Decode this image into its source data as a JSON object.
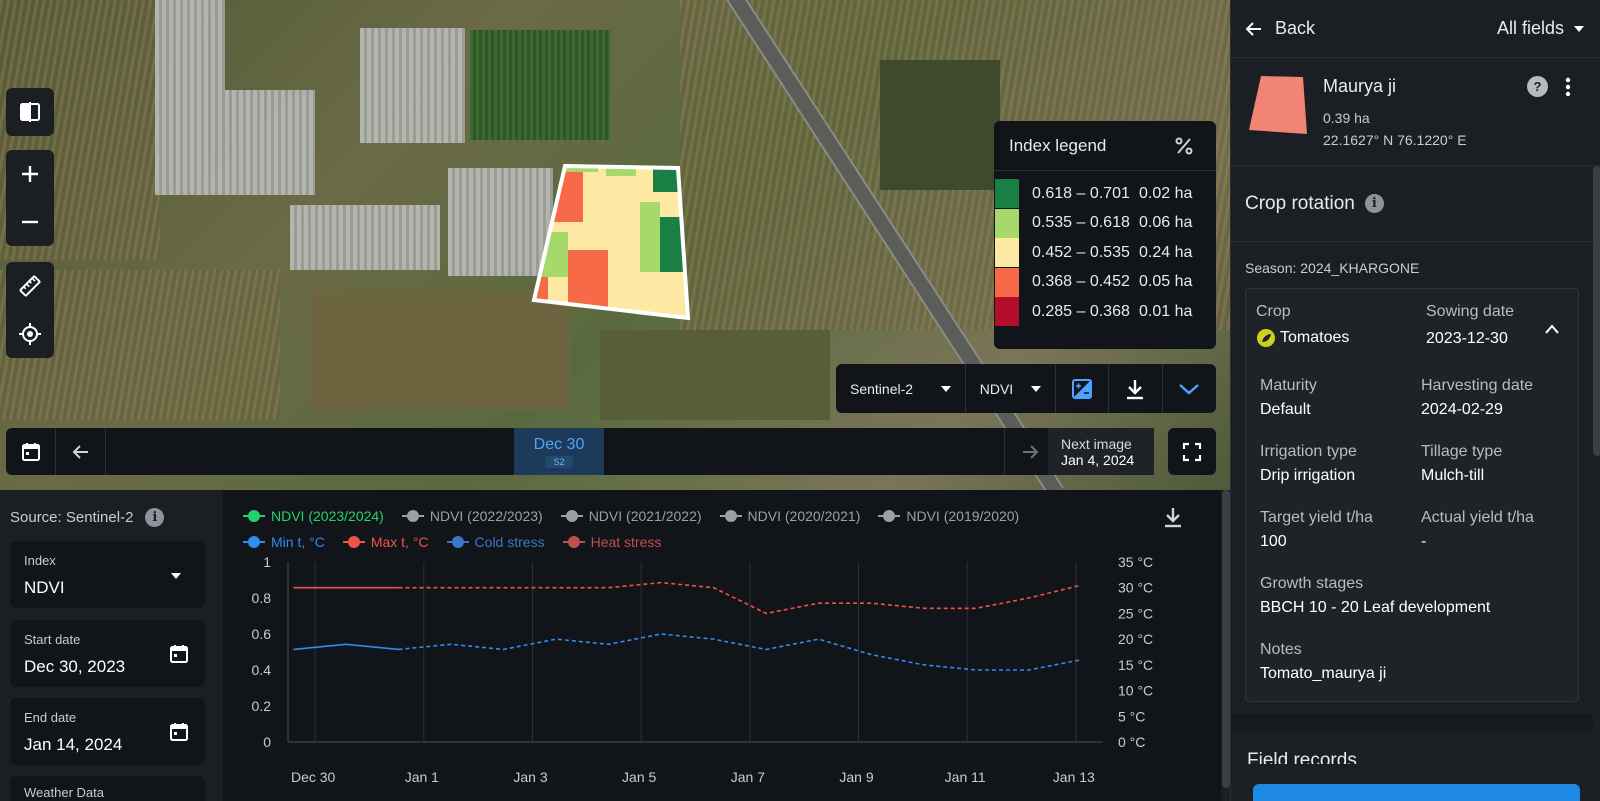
{
  "map": {
    "legend": {
      "title": "Index legend",
      "rows": [
        {
          "range": "0.618 – 0.701",
          "area": "0.02 ha",
          "color": "#1a7f45"
        },
        {
          "range": "0.535 – 0.618",
          "area": "0.06 ha",
          "color": "#a6d96a"
        },
        {
          "range": "0.452 – 0.535",
          "area": "0.24 ha",
          "color": "#fde9a3"
        },
        {
          "range": "0.368 – 0.452",
          "area": "0.05 ha",
          "color": "#f76a48"
        },
        {
          "range": "0.285 – 0.368",
          "area": "0.01 ha",
          "color": "#b30d2b"
        }
      ]
    },
    "toolbar": {
      "satellite": "Sentinel-2",
      "index": "NDVI"
    },
    "timeline": {
      "active_date": "Dec 30",
      "active_source": "S2",
      "next_label": "Next image",
      "next_date": "Jan 4, 2024"
    }
  },
  "filters": {
    "source": "Source: Sentinel-2",
    "index_label": "Index",
    "index_value": "NDVI",
    "start_label": "Start date",
    "start_value": "Dec 30, 2023",
    "end_label": "End date",
    "end_value": "Jan 14, 2024",
    "weather_label": "Weather Data"
  },
  "chart_data": {
    "type": "line",
    "legend_row1": [
      "NDVI (2023/2024)",
      "NDVI (2022/2023)",
      "NDVI (2021/2022)",
      "NDVI (2020/2021)",
      "NDVI (2019/2020)"
    ],
    "legend_row2": [
      "Min t, °C",
      "Max t, °C",
      "Cold stress",
      "Heat stress"
    ],
    "legend_colors": {
      "ndvi_current": "#22d36b",
      "ndvi_past": "#9aa0a6",
      "min_t": "#2f8cf0",
      "max_t": "#f0524a",
      "cold": "#3a78c8",
      "heat": "#c0504a"
    },
    "x_tick_labels": [
      "Dec 30",
      "Jan 1",
      "Jan 3",
      "Jan 5",
      "Jan 7",
      "Jan 9",
      "Jan 11",
      "Jan 13"
    ],
    "y_left_ticks": [
      "1",
      "0.8",
      "0.6",
      "0.4",
      "0.2",
      "0"
    ],
    "y_right_ticks": [
      "35 °C",
      "30 °C",
      "25 °C",
      "20 °C",
      "15 °C",
      "10 °C",
      "5 °C",
      "0 °C"
    ],
    "ylim_left": [
      0,
      1
    ],
    "ylim_right": [
      0,
      35
    ],
    "x_days": [
      0,
      1,
      2,
      3,
      4,
      5,
      6,
      7,
      8,
      9,
      10,
      11,
      12,
      13,
      14,
      15
    ],
    "series": [
      {
        "name": "Max t, °C",
        "axis": "right",
        "color": "#f0524a",
        "values": [
          30,
          30,
          30,
          30,
          30,
          30,
          30,
          31,
          30,
          25,
          27,
          27,
          26,
          26,
          28,
          30.5
        ]
      },
      {
        "name": "Min t, °C",
        "axis": "right",
        "color": "#2f8cf0",
        "values": [
          18,
          19,
          18,
          19,
          18,
          20,
          19,
          21,
          20,
          18,
          20,
          17,
          15,
          14,
          14,
          16
        ]
      }
    ]
  },
  "side": {
    "back_label": "Back",
    "all_fields_label": "All fields",
    "field": {
      "name": "Maurya ji",
      "area": "0.39 ha",
      "coords": "22.1627° N 76.1220° E",
      "color": "#f28476"
    },
    "crop_rotation_title": "Crop rotation",
    "season": "Season: 2024_KHARGONE",
    "crop_label": "Crop",
    "crop_value": "Tomatoes",
    "sowing_label": "Sowing date",
    "sowing_value": "2023-12-30",
    "maturity_label": "Maturity",
    "maturity_value": "Default",
    "harvest_label": "Harvesting date",
    "harvest_value": "2024-02-29",
    "irrigation_label": "Irrigation type",
    "irrigation_value": "Drip irrigation",
    "tillage_label": "Tillage type",
    "tillage_value": "Mulch-till",
    "target_label": "Target yield t/ha",
    "target_value": "100",
    "actual_label": "Actual yield t/ha",
    "actual_value": "-",
    "growth_label": "Growth stages",
    "growth_value": "BBCH 10 - 20 Leaf development",
    "notes_label": "Notes",
    "notes_value": "Tomato_maurya ji",
    "cut_section_title": "Field records"
  }
}
